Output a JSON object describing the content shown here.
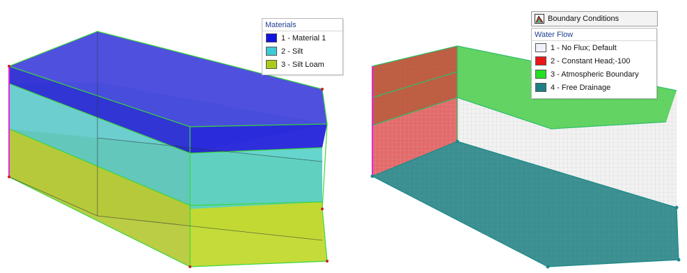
{
  "materials_legend": {
    "title": "Materials",
    "items": [
      {
        "label": "1 - Material 1",
        "color": "#1212e0"
      },
      {
        "label": "2 - Silt",
        "color": "#3fc9d6"
      },
      {
        "label": "3 - Silt Loam",
        "color": "#a9cc1c"
      }
    ]
  },
  "boundary_panel": {
    "header": "Boundary Conditions",
    "icon": "boundary-conditions-icon",
    "section_title": "Water Flow",
    "items": [
      {
        "label": "1 - No Flux; Default",
        "color": "#eef2f8"
      },
      {
        "label": "2 - Constant Head;-100",
        "color": "#e81818"
      },
      {
        "label": "3 - Atmospheric Boundary",
        "color": "#22e022"
      },
      {
        "label": "4 - Free Drainage",
        "color": "#1f7f85"
      }
    ]
  }
}
